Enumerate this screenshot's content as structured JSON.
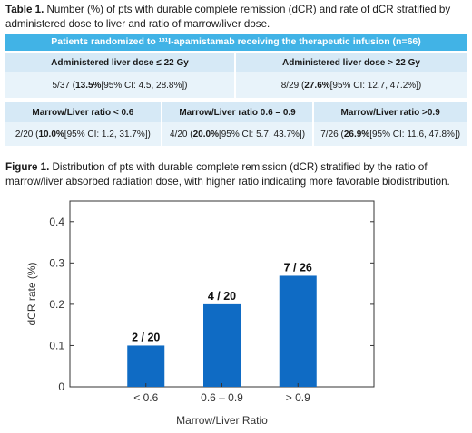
{
  "table": {
    "caption_label": "Table 1.",
    "caption_text": " Number (%) of pts with durable complete remission (dCR) and rate of dCR stratified by administered dose to liver and ratio of marrow/liver dose.",
    "banner": "Patients randomized to ¹³¹I-apamistamab receiving the therapeutic infusion (n=66)",
    "dose_headers": [
      "Administered  liver dose ≤ 22 Gy",
      "Administered  liver dose > 22 Gy"
    ],
    "dose_values": [
      {
        "count": "5/37 (",
        "pct": "13.5%",
        "ci": " [95% CI: 4.5, 28.8%])"
      },
      {
        "count": "8/29 (",
        "pct": "27.6%",
        "ci": " [95% CI: 12.7, 47.2%])"
      }
    ],
    "ratio_headers": [
      "Marrow/Liver ratio < 0.6",
      "Marrow/Liver ratio  0.6 – 0.9",
      "Marrow/Liver ratio >0.9"
    ],
    "ratio_values": [
      {
        "count": "2/20 (",
        "pct": "10.0%",
        "ci": " [95% CI: 1.2, 31.7%])"
      },
      {
        "count": "4/20 (",
        "pct": "20.0%",
        "ci": " [95% CI: 5.7, 43.7%])"
      },
      {
        "count": "7/26 (",
        "pct": "26.9%",
        "ci": " [95% CI: 11.6, 47.8%])"
      }
    ]
  },
  "figure": {
    "caption_label": "Figure 1.",
    "caption_text": " Distribution of pts with durable complete remission (dCR) stratified by the ratio of marrow/liver absorbed radiation dose, with higher ratio indicating more favorable biodistribution."
  },
  "chart_data": {
    "type": "bar",
    "categories": [
      "< 0.6",
      "0.6 – 0.9",
      "> 0.9"
    ],
    "values": [
      0.1,
      0.2,
      0.269
    ],
    "data_labels": [
      "2 / 20",
      "4 / 20",
      "7 / 26"
    ],
    "xlabel": "Marrow/Liver Ratio",
    "ylabel": "dCR rate (%)",
    "ylim": [
      0,
      0.45
    ],
    "yticks": [
      0,
      0.1,
      0.2,
      0.3,
      0.4
    ],
    "ytick_labels": [
      "0",
      "0.1",
      "0.2",
      "0.3",
      "0.4"
    ],
    "grid": false,
    "bar_color": "#0f6bc4"
  }
}
